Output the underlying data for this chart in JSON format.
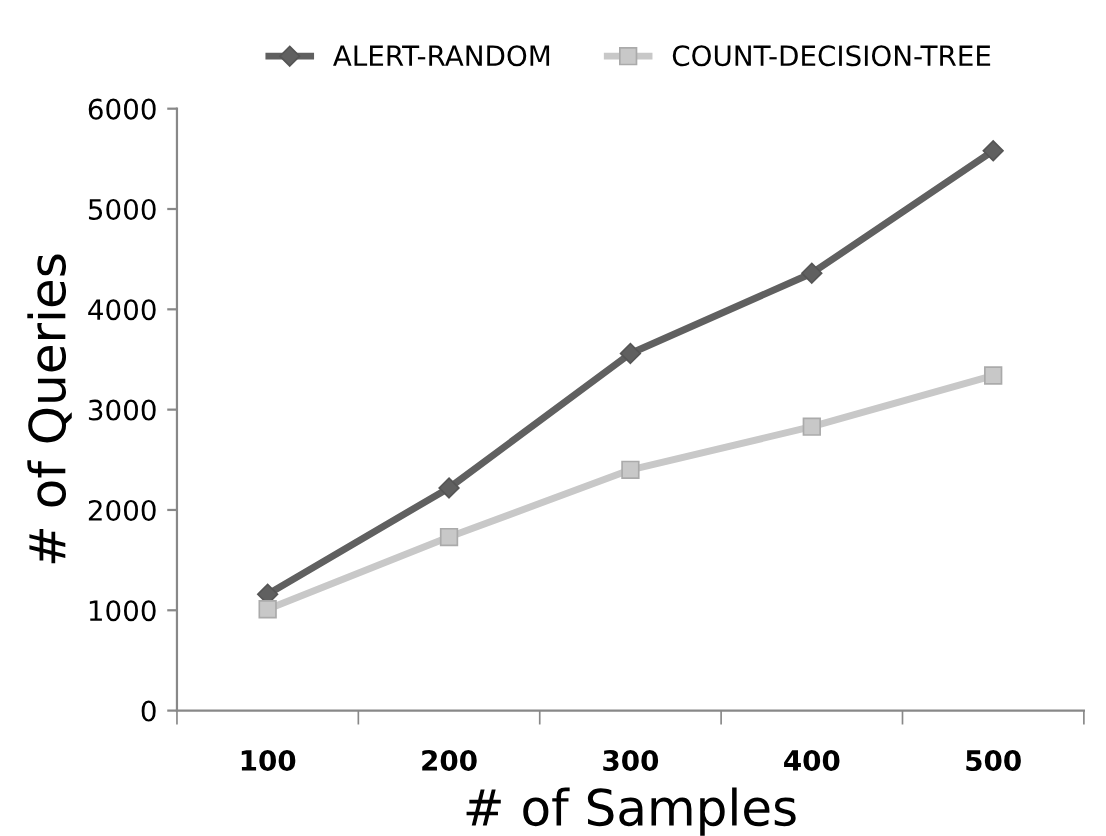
{
  "chart_data": {
    "type": "line",
    "xlabel": "# of Samples",
    "ylabel": "# of Queries",
    "categories": [
      "100",
      "200",
      "300",
      "400",
      "500"
    ],
    "series": [
      {
        "name": "ALERT-RANDOM",
        "color": "#606060",
        "marker": "diamond",
        "values": [
          1160,
          2220,
          3560,
          4360,
          5580
        ]
      },
      {
        "name": "COUNT-DECISION-TREE",
        "color": "#c8c8c8",
        "marker": "square",
        "values": [
          1010,
          1730,
          2400,
          2830,
          3340
        ]
      }
    ],
    "ylim": [
      0,
      6000
    ],
    "yticks": [
      0,
      1000,
      2000,
      3000,
      4000,
      5000,
      6000
    ],
    "grid": false,
    "legend": "top"
  }
}
